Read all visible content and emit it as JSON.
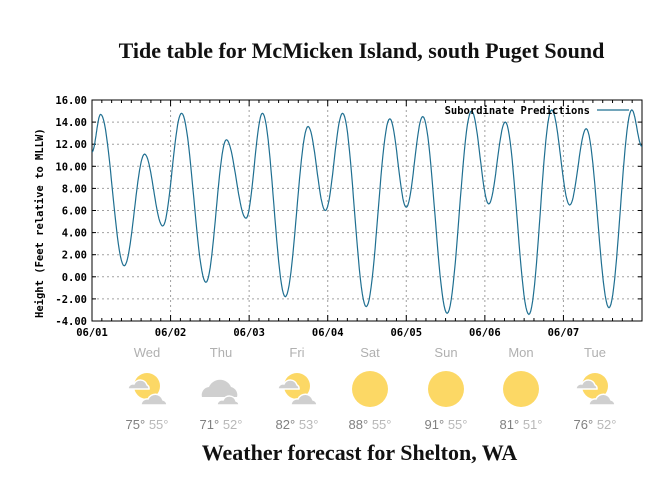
{
  "header": {
    "title": "Tide table for McMicken Island, south Puget Sound"
  },
  "footer": {
    "title": "Weather forecast for Shelton, WA"
  },
  "colors": {
    "line": "#1f6f91",
    "grid": "#a0a0a0",
    "sun": "#fcd865",
    "cloud": "#cfcfcf",
    "day_label": "#b0b0b0",
    "temp_hi": "#808080",
    "temp_lo": "#b8b8b8"
  },
  "chart_data": {
    "type": "line",
    "title": "Tide table for McMicken Island, south Puget Sound",
    "xlabel": "",
    "ylabel": "Height (Feet relative to MLLW)",
    "ylim": [
      -4,
      16
    ],
    "yticks": [
      "16.00",
      "14.00",
      "12.00",
      "10.00",
      "8.00",
      "6.00",
      "4.00",
      "2.00",
      "0.00",
      "-2.00",
      "-4.00"
    ],
    "xticks": [
      "06/01",
      "06/02",
      "06/03",
      "06/04",
      "06/05",
      "06/06",
      "06/07"
    ],
    "xlim_days": [
      0,
      7
    ],
    "grid": true,
    "legend": {
      "position": "top-right",
      "entries": [
        "Subordinate Predictions"
      ]
    },
    "series": [
      {
        "name": "Subordinate Predictions",
        "x_days": [
          0.0,
          0.11,
          0.41,
          0.67,
          0.9,
          1.14,
          1.45,
          1.71,
          1.96,
          2.17,
          2.46,
          2.75,
          2.97,
          3.19,
          3.49,
          3.79,
          4.0,
          4.21,
          4.52,
          4.83,
          5.05,
          5.26,
          5.56,
          5.85,
          6.08,
          6.29,
          6.58,
          6.87,
          7.0
        ],
        "values": [
          11.3,
          14.7,
          1.0,
          11.1,
          4.6,
          14.8,
          -0.5,
          12.4,
          5.3,
          14.8,
          -1.8,
          13.6,
          6.0,
          14.8,
          -2.7,
          14.3,
          6.3,
          14.5,
          -3.3,
          15.0,
          6.6,
          14.0,
          -3.4,
          15.1,
          6.5,
          13.4,
          -2.8,
          15.1,
          11.8
        ]
      }
    ]
  },
  "weather": {
    "days": [
      {
        "day": "Wed",
        "icon": "partly-cloudy-icon",
        "hi": "75°",
        "lo": "55°"
      },
      {
        "day": "Thu",
        "icon": "cloudy-icon",
        "hi": "71°",
        "lo": "52°"
      },
      {
        "day": "Fri",
        "icon": "partly-cloudy-icon",
        "hi": "82°",
        "lo": "53°"
      },
      {
        "day": "Sat",
        "icon": "sunny-icon",
        "hi": "88°",
        "lo": "55°"
      },
      {
        "day": "Sun",
        "icon": "sunny-icon",
        "hi": "91°",
        "lo": "55°"
      },
      {
        "day": "Mon",
        "icon": "sunny-icon",
        "hi": "81°",
        "lo": "51°"
      },
      {
        "day": "Tue",
        "icon": "partly-cloudy-icon",
        "hi": "76°",
        "lo": "52°"
      }
    ]
  }
}
